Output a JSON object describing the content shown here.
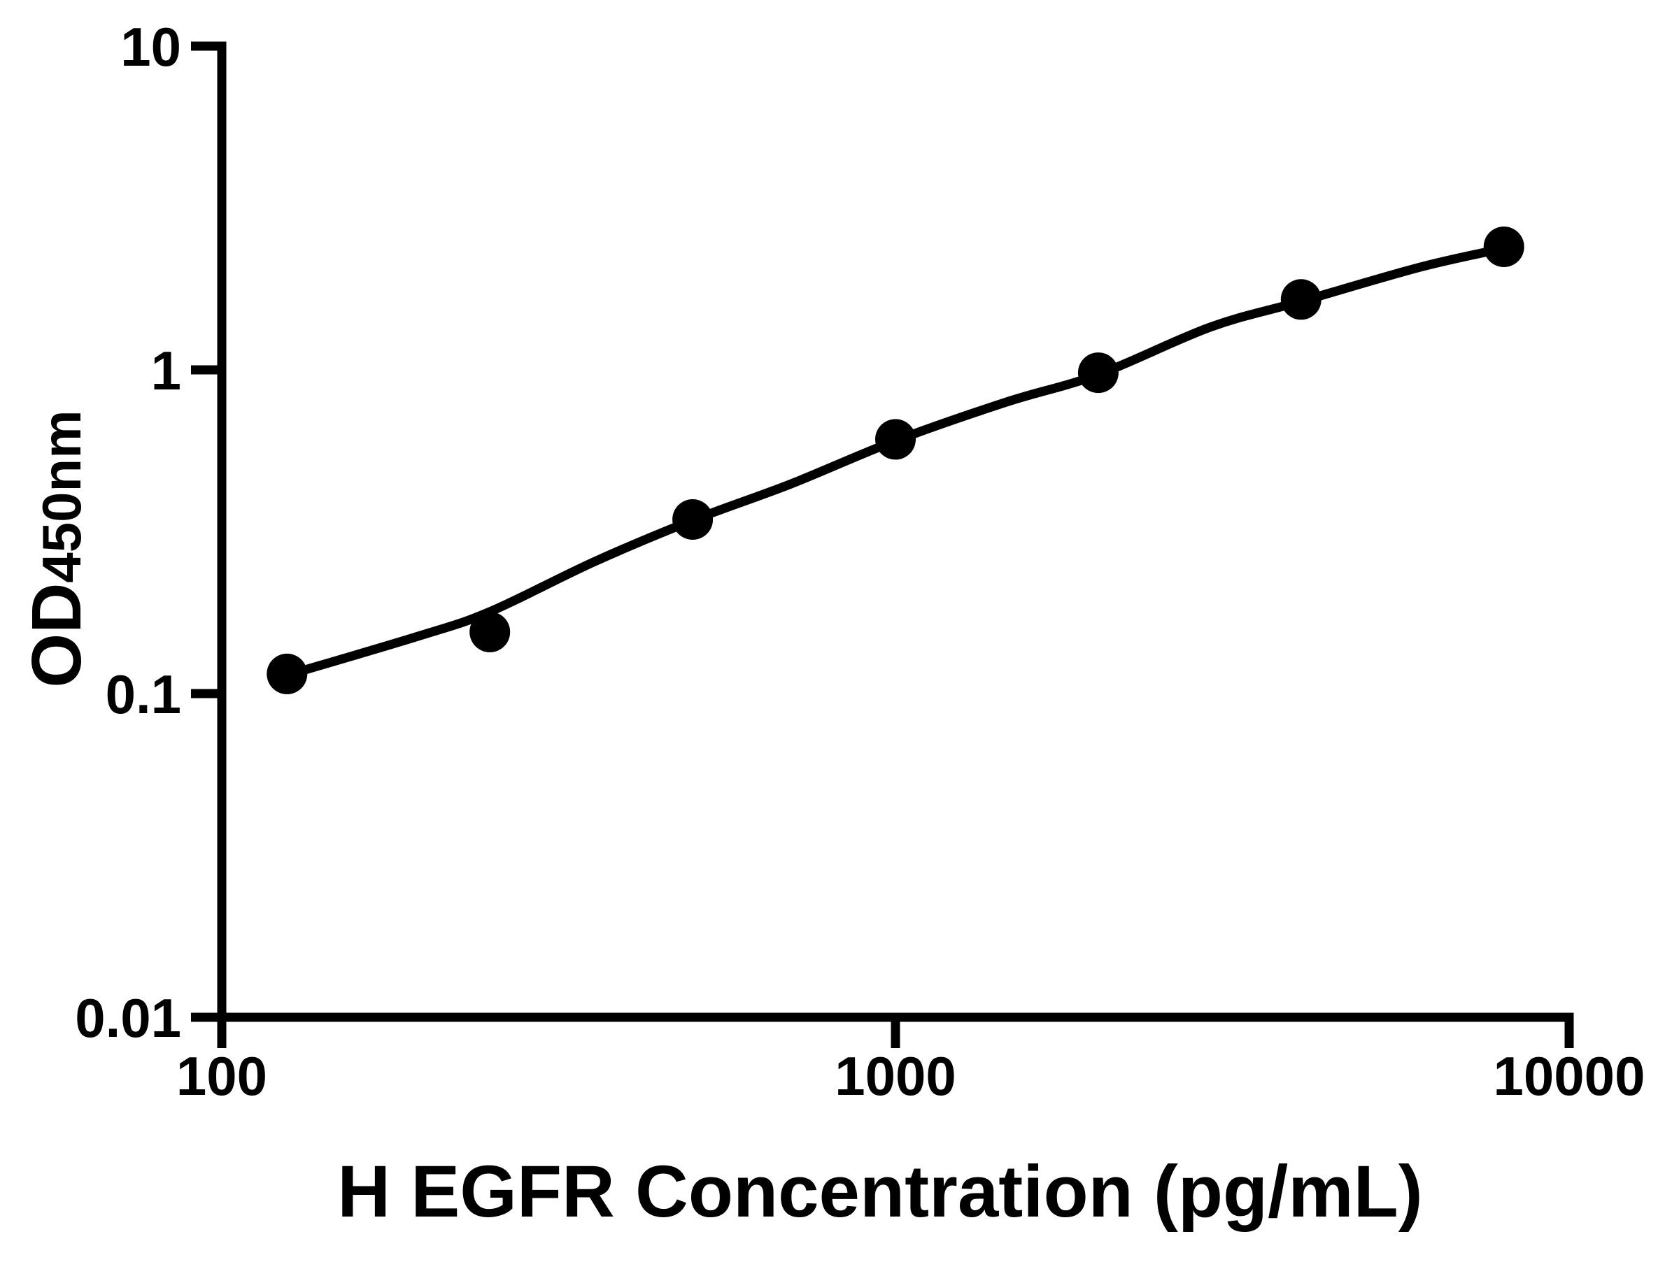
{
  "chart_data": {
    "type": "scatter",
    "title": "",
    "xlabel": "H EGFR Concentration (pg/mL)",
    "ylabel_main": "OD",
    "ylabel_sub": "450nm",
    "x_scale": "log",
    "y_scale": "log",
    "xlim": [
      100,
      10000
    ],
    "ylim": [
      0.01,
      10
    ],
    "grid": false,
    "legend": false,
    "x_ticks": [
      {
        "value": 100,
        "label": "100"
      },
      {
        "value": 1000,
        "label": "1000"
      },
      {
        "value": 10000,
        "label": "10000"
      }
    ],
    "y_ticks": [
      {
        "value": 10,
        "label": "10"
      },
      {
        "value": 1,
        "label": "1"
      },
      {
        "value": 0.1,
        "label": "0.1"
      },
      {
        "value": 0.01,
        "label": "0.01"
      }
    ],
    "series": [
      {
        "marker": "filled-circle",
        "color": "#000000",
        "x": [
          125,
          250,
          500,
          1000,
          2000,
          4000,
          8000
        ],
        "y": [
          0.115,
          0.155,
          0.345,
          0.61,
          0.98,
          1.65,
          2.4
        ]
      }
    ],
    "fit_curve": {
      "color": "#000000",
      "points": [
        [
          125,
          0.114
        ],
        [
          197,
          0.151
        ],
        [
          250,
          0.179
        ],
        [
          358,
          0.256
        ],
        [
          500,
          0.343
        ],
        [
          699,
          0.444
        ],
        [
          1000,
          0.604
        ],
        [
          1466,
          0.797
        ],
        [
          2000,
          0.967
        ],
        [
          2933,
          1.355
        ],
        [
          4000,
          1.628
        ],
        [
          6008,
          2.076
        ],
        [
          8000,
          2.373
        ]
      ]
    }
  },
  "colors": {
    "background": "#ffffff",
    "axis": "#000000",
    "marker": "#000000",
    "curve": "#000000"
  }
}
